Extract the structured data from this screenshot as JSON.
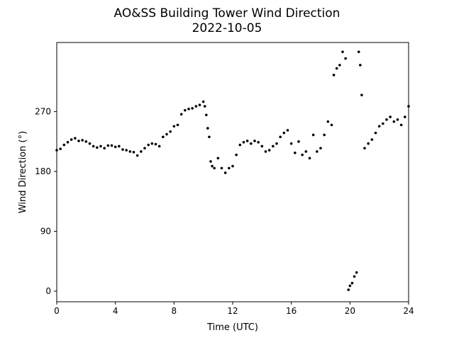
{
  "chart_data": {
    "type": "scatter",
    "title": "AO&SS Building Tower Wind Direction",
    "subtitle": "2022-10-05",
    "x_label": "Time (UTC)",
    "y_label": "Wind Direction (°)",
    "color": "#000000",
    "xlim": [
      0,
      24
    ],
    "xticks": [
      0,
      4,
      8,
      12,
      16,
      20,
      24
    ],
    "ylim": [
      -16,
      374
    ],
    "yticks": [
      0,
      90,
      180,
      270
    ],
    "x": [
      0,
      0.25,
      0.5,
      0.75,
      1,
      1.25,
      1.5,
      1.75,
      2,
      2.25,
      2.5,
      2.75,
      3,
      3.25,
      3.5,
      3.75,
      4,
      4.25,
      4.5,
      4.75,
      5,
      5.25,
      5.5,
      5.75,
      6,
      6.25,
      6.5,
      6.75,
      7,
      7.25,
      7.5,
      7.75,
      8,
      8.25,
      8.5,
      8.75,
      9,
      9.25,
      9.5,
      9.75,
      10,
      10.1,
      10.2,
      10.3,
      10.4,
      10.5,
      10.6,
      10.75,
      11,
      11.25,
      11.5,
      11.75,
      12,
      12.25,
      12.5,
      12.75,
      13,
      13.25,
      13.5,
      13.75,
      14,
      14.25,
      14.5,
      14.75,
      15,
      15.25,
      15.5,
      15.75,
      16,
      16.25,
      16.5,
      16.75,
      17,
      17.25,
      17.5,
      17.75,
      18,
      18.25,
      18.5,
      18.75,
      18.9,
      19.1,
      19.3,
      19.5,
      19.7,
      19.9,
      20.0,
      20.15,
      20.3,
      20.45,
      20.6,
      20.7,
      20.8,
      21,
      21.25,
      21.5,
      21.75,
      22,
      22.25,
      22.5,
      22.75,
      23,
      23.25,
      23.5,
      23.75,
      24
    ],
    "values": [
      212,
      214,
      220,
      224,
      228,
      230,
      226,
      227,
      225,
      222,
      218,
      216,
      218,
      215,
      219,
      219,
      217,
      218,
      213,
      212,
      210,
      209,
      204,
      210,
      215,
      220,
      222,
      221,
      218,
      232,
      236,
      240,
      248,
      250,
      266,
      272,
      274,
      275,
      278,
      280,
      285,
      278,
      265,
      245,
      232,
      195,
      188,
      185,
      200,
      185,
      178,
      185,
      188,
      205,
      220,
      224,
      226,
      222,
      226,
      224,
      218,
      210,
      212,
      218,
      222,
      232,
      238,
      242,
      222,
      208,
      225,
      205,
      210,
      200,
      235,
      210,
      215,
      235,
      255,
      250,
      325,
      335,
      340,
      360,
      350,
      2,
      8,
      12,
      22,
      28,
      360,
      340,
      295,
      215,
      222,
      228,
      238,
      248,
      252,
      258,
      262,
      255,
      258,
      250,
      262,
      278
    ]
  }
}
